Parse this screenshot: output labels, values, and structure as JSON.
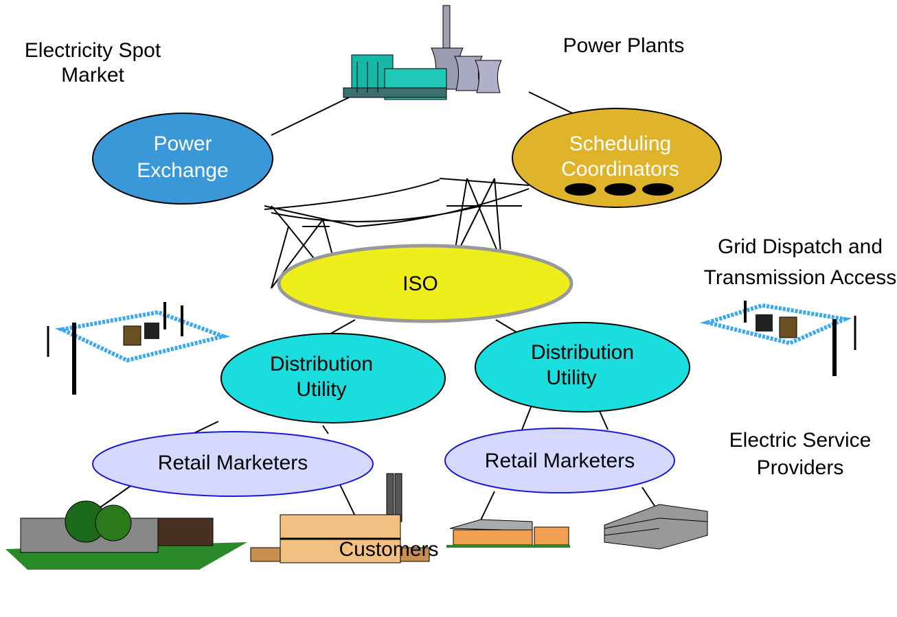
{
  "labels": {
    "spot_market": [
      "Electricity Spot",
      "Market"
    ],
    "power_plants": "Power Plants",
    "grid_dispatch": [
      "Grid Dispatch and",
      "Transmission Access"
    ],
    "service_providers": [
      "Electric Service",
      "Providers"
    ],
    "customers": "Customers"
  },
  "nodes": [
    {
      "label": [
        "Power",
        "Exchange"
      ]
    },
    {
      "label": [
        "Scheduling",
        "Coordinators"
      ]
    },
    {
      "label": [
        "ISO"
      ]
    },
    {
      "label": [
        "Distribution",
        "Utility"
      ]
    },
    {
      "label": [
        "Distribution",
        "Utility"
      ]
    },
    {
      "label": [
        "Retail Marketers"
      ]
    },
    {
      "label": [
        "Retail Marketers"
      ]
    }
  ]
}
